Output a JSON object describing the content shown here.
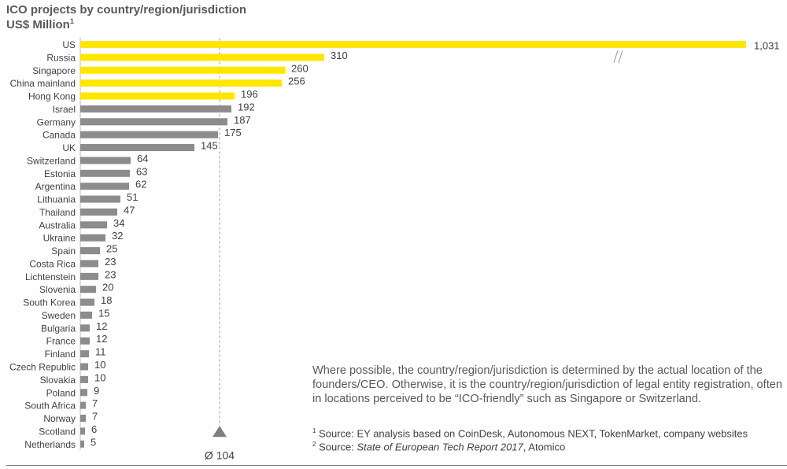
{
  "title": "ICO projects by country/region/jurisdiction",
  "subtitle": "US$ Million",
  "subtitle_sup": "1",
  "chart_data": {
    "type": "bar",
    "orientation": "horizontal",
    "title": "ICO projects by country/region/jurisdiction",
    "unit": "US$ Million",
    "axis_break_on": "US",
    "categories": [
      "US",
      "Russia",
      "Singapore",
      "China mainland",
      "Hong Kong",
      "Israel",
      "Germany",
      "Canada",
      "UK",
      "Switzerland",
      "Estonia",
      "Argentina",
      "Lithuania",
      "Thailand",
      "Australia",
      "Ukraine",
      "Spain",
      "Costa Rica",
      "Lichtenstein",
      "Slovenia",
      "South Korea",
      "Sweden",
      "Bulgaria",
      "France",
      "Finland",
      "Czech Republic",
      "Slovakia",
      "Poland",
      "South Africa",
      "Norway",
      "Scotland",
      "Netherlands"
    ],
    "values": [
      1031,
      310,
      260,
      256,
      196,
      192,
      187,
      175,
      145,
      64,
      63,
      62,
      51,
      47,
      34,
      32,
      25,
      23,
      23,
      20,
      18,
      15,
      12,
      12,
      11,
      10,
      10,
      9,
      7,
      7,
      6,
      5
    ],
    "value_labels": [
      "1,031",
      "310",
      "260",
      "256",
      "196",
      "192",
      "187",
      "175",
      "145",
      "64",
      "63",
      "62",
      "51",
      "47",
      "34",
      "32",
      "25",
      "23",
      "23",
      "20",
      "18",
      "15",
      "12",
      "12",
      "11",
      "10",
      "10",
      "9",
      "7",
      "7",
      "6",
      "5"
    ],
    "highlight_count": 5,
    "highlight_color": "#FFE600",
    "base_color": "#8C8C8C",
    "average": {
      "value": 104,
      "label": "Ø 104"
    }
  },
  "note": "Where possible, the country/region/jurisdiction is determined by the actual location of the founders/CEO. Otherwise, it is the country/region/jurisdiction of legal entity registration, often in locations perceived to be “ICO-friendly” such as Singapore or Switzerland.",
  "sources": {
    "s1_sup": "1",
    "s1_text": " Source: EY analysis based on CoinDesk, Autonomous NEXT, TokenMarket, company websites",
    "s2_sup": "2",
    "s2_prefix": " Source: ",
    "s2_italic": "State of European Tech Report 2017",
    "s2_suffix": ", Atomico"
  }
}
